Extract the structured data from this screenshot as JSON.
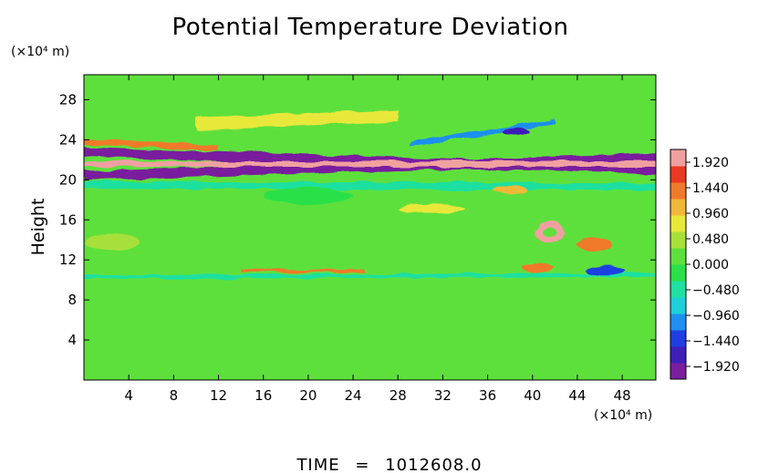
{
  "figure": {
    "title": "Potential Temperature Deviation",
    "y_unit": "(×10⁴ m)",
    "x_unit": "(×10⁴ m)",
    "ylabel": "Height",
    "time_label": "TIME",
    "time_eq": "=",
    "time_value": "1012608.0"
  },
  "chart_data": {
    "type": "heatmap",
    "title": "Potential Temperature Deviation",
    "xlabel": "",
    "ylabel": "Height",
    "x_unit": "(×10⁴ m)",
    "y_unit": "(×10⁴ m)",
    "xlim": [
      0,
      51
    ],
    "ylim": [
      0,
      30.5
    ],
    "x_ticks": [
      4,
      8,
      12,
      16,
      20,
      24,
      28,
      32,
      36,
      40,
      44,
      48
    ],
    "y_ticks": [
      4,
      8,
      12,
      16,
      20,
      24,
      28
    ],
    "colorbar": {
      "min": -2.16,
      "max": 2.16,
      "tick_values": [
        1.92,
        1.44,
        0.96,
        0.48,
        0.0,
        -0.48,
        -0.96,
        -1.44,
        -1.92
      ],
      "tick_labels": [
        "1.920",
        "1.440",
        "0.960",
        "0.480",
        "0.000",
        "−0.480",
        "−0.960",
        "−1.440",
        "−1.920"
      ],
      "colors": [
        "#7a1f9e",
        "#3e1fb8",
        "#1f3fe0",
        "#1f8ff0",
        "#1fd0d8",
        "#1fe0a0",
        "#2ce04a",
        "#5ee03c",
        "#a8e03a",
        "#e8e83a",
        "#f0b838",
        "#f07a2c",
        "#e83a22",
        "#f0a0a0"
      ]
    },
    "background_value": 0.05,
    "features": [
      {
        "kind": "band",
        "x": [
          0,
          51
        ],
        "y": [
          22.8,
          21.0
        ],
        "thickness": 0.9,
        "value": -2.0
      },
      {
        "kind": "band",
        "x": [
          0,
          51
        ],
        "y": [
          20.4,
          22.2
        ],
        "thickness": 0.9,
        "value": -2.0
      },
      {
        "kind": "band",
        "x": [
          0,
          51
        ],
        "y": [
          21.6,
          21.6
        ],
        "thickness": 0.6,
        "value": 2.1
      },
      {
        "kind": "band",
        "x": [
          0,
          12
        ],
        "y": [
          23.8,
          23.2
        ],
        "thickness": 0.5,
        "value": 1.4
      },
      {
        "kind": "band",
        "x": [
          10,
          28
        ],
        "y": [
          25.6,
          26.4
        ],
        "thickness": 1.2,
        "value": 0.9
      },
      {
        "kind": "band",
        "x": [
          29,
          42
        ],
        "y": [
          23.6,
          25.8
        ],
        "thickness": 0.5,
        "value": -1.2
      },
      {
        "kind": "band",
        "x": [
          0,
          51
        ],
        "y": [
          10.3,
          10.5
        ],
        "thickness": 0.4,
        "value": -0.6
      },
      {
        "kind": "band",
        "x": [
          14,
          25
        ],
        "y": [
          10.9,
          10.9
        ],
        "thickness": 0.3,
        "value": 1.3
      },
      {
        "kind": "band",
        "x": [
          0,
          51
        ],
        "y": [
          19.5,
          19.3
        ],
        "thickness": 0.7,
        "value": -0.4
      },
      {
        "kind": "blob",
        "x": 41.5,
        "y": 14.8,
        "rx": 1.3,
        "ry": 1.1,
        "value": 1.9
      },
      {
        "kind": "blob",
        "x": 41.5,
        "y": 14.8,
        "rx": 0.6,
        "ry": 0.5,
        "value": 0.3
      },
      {
        "kind": "blob",
        "x": 45.5,
        "y": 13.6,
        "rx": 1.6,
        "ry": 0.6,
        "value": 1.3
      },
      {
        "kind": "blob",
        "x": 46.5,
        "y": 10.9,
        "rx": 1.8,
        "ry": 0.5,
        "value": -1.3
      },
      {
        "kind": "blob",
        "x": 40.5,
        "y": 11.2,
        "rx": 1.4,
        "ry": 0.5,
        "value": 1.4
      },
      {
        "kind": "blob",
        "x": 31,
        "y": 17.1,
        "rx": 3.0,
        "ry": 0.4,
        "value": 0.9
      },
      {
        "kind": "blob",
        "x": 38.5,
        "y": 24.8,
        "rx": 1.2,
        "ry": 0.4,
        "value": -1.6
      },
      {
        "kind": "blob",
        "x": 2.5,
        "y": 13.8,
        "rx": 2.5,
        "ry": 0.8,
        "value": 0.5
      },
      {
        "kind": "blob",
        "x": 38,
        "y": 19.0,
        "rx": 1.5,
        "ry": 0.4,
        "value": 1.2
      },
      {
        "kind": "blob",
        "x": 20,
        "y": 18.4,
        "rx": 4.0,
        "ry": 0.8,
        "value": -0.3
      }
    ]
  }
}
